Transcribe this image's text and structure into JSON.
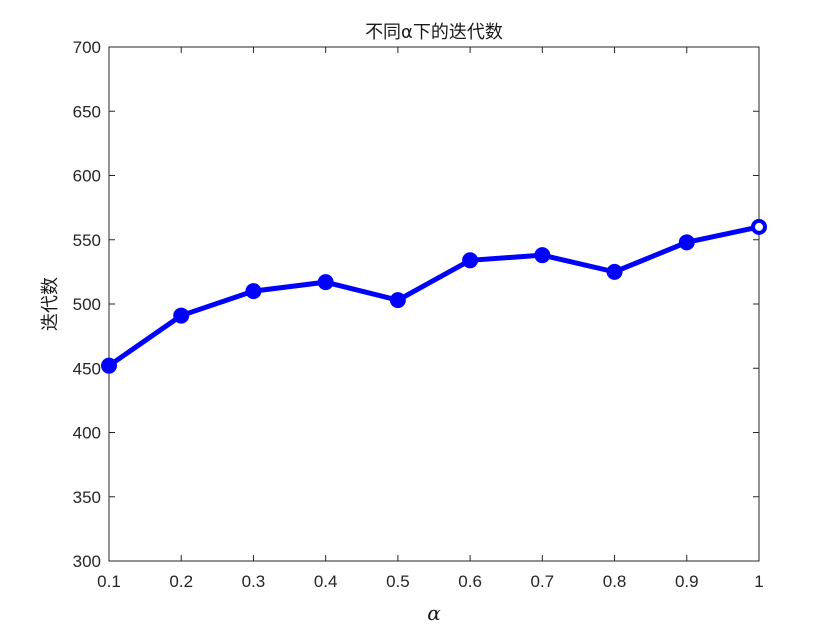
{
  "chart_data": {
    "type": "line",
    "title": "不同α下的迭代数",
    "xlabel": "α",
    "ylabel": "迭代数",
    "x": [
      0.1,
      0.2,
      0.3,
      0.4,
      0.5,
      0.6,
      0.7,
      0.8,
      0.9,
      1.0
    ],
    "series": [
      {
        "values": [
          452,
          491,
          510,
          517,
          503,
          534,
          538,
          525,
          548,
          560
        ],
        "color": "#0000ff",
        "marker": "circle"
      }
    ],
    "xlim": [
      0.1,
      1.0
    ],
    "ylim": [
      300,
      700
    ],
    "xticks": [
      0.1,
      0.2,
      0.3,
      0.4,
      0.5,
      0.6,
      0.7,
      0.8,
      0.9,
      1.0
    ],
    "xtick_labels": [
      "0.1",
      "0.2",
      "0.3",
      "0.4",
      "0.5",
      "0.6",
      "0.7",
      "0.8",
      "0.9",
      "1"
    ],
    "yticks": [
      300,
      350,
      400,
      450,
      500,
      550,
      600,
      650,
      700
    ],
    "ytick_labels": [
      "300",
      "350",
      "400",
      "450",
      "500",
      "550",
      "600",
      "650",
      "700"
    ],
    "grid": false,
    "box": true
  }
}
